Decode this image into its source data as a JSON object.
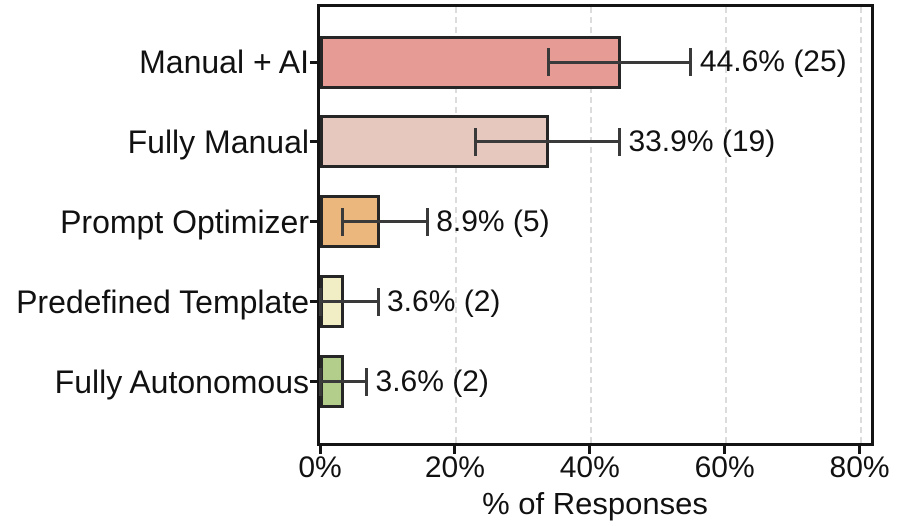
{
  "chart_data": {
    "type": "bar",
    "orientation": "horizontal",
    "title": "",
    "xlabel": "% of Responses",
    "ylabel": "",
    "xlim": [
      0,
      81.7
    ],
    "xticks": [
      0,
      20,
      40,
      60,
      80
    ],
    "xtick_labels": [
      "0%",
      "20%",
      "40%",
      "60%",
      "80%"
    ],
    "grid": "vertical-dashed",
    "legend": "none",
    "categories": [
      "Manual + AI",
      "Fully Manual",
      "Prompt Optimizer",
      "Predefined Template",
      "Fully Autonomous"
    ],
    "series": [
      {
        "name": "% of Responses",
        "values": [
          44.6,
          33.9,
          8.9,
          3.6,
          3.6
        ],
        "counts": [
          25,
          19,
          5,
          2,
          2
        ],
        "value_labels": [
          "44.6% (25)",
          "33.9% (19)",
          "8.9% (5)",
          "3.6% (2)",
          "3.6% (2)"
        ],
        "error_low": [
          33.9,
          23.1,
          3.4,
          0,
          0
        ],
        "error_high": [
          55.0,
          44.4,
          15.9,
          8.6,
          6.9
        ],
        "bar_colors": [
          "#e69c94",
          "#e7c8be",
          "#ebb77d",
          "#f1eec5",
          "#b3cd8b"
        ]
      }
    ],
    "style_colors": {
      "bar_edge": "#262626",
      "error_bar": "#3a3a3a",
      "gridline": "#dcdcdc",
      "spine": "#141414",
      "text": "#111111",
      "background": "#ffffff"
    }
  }
}
